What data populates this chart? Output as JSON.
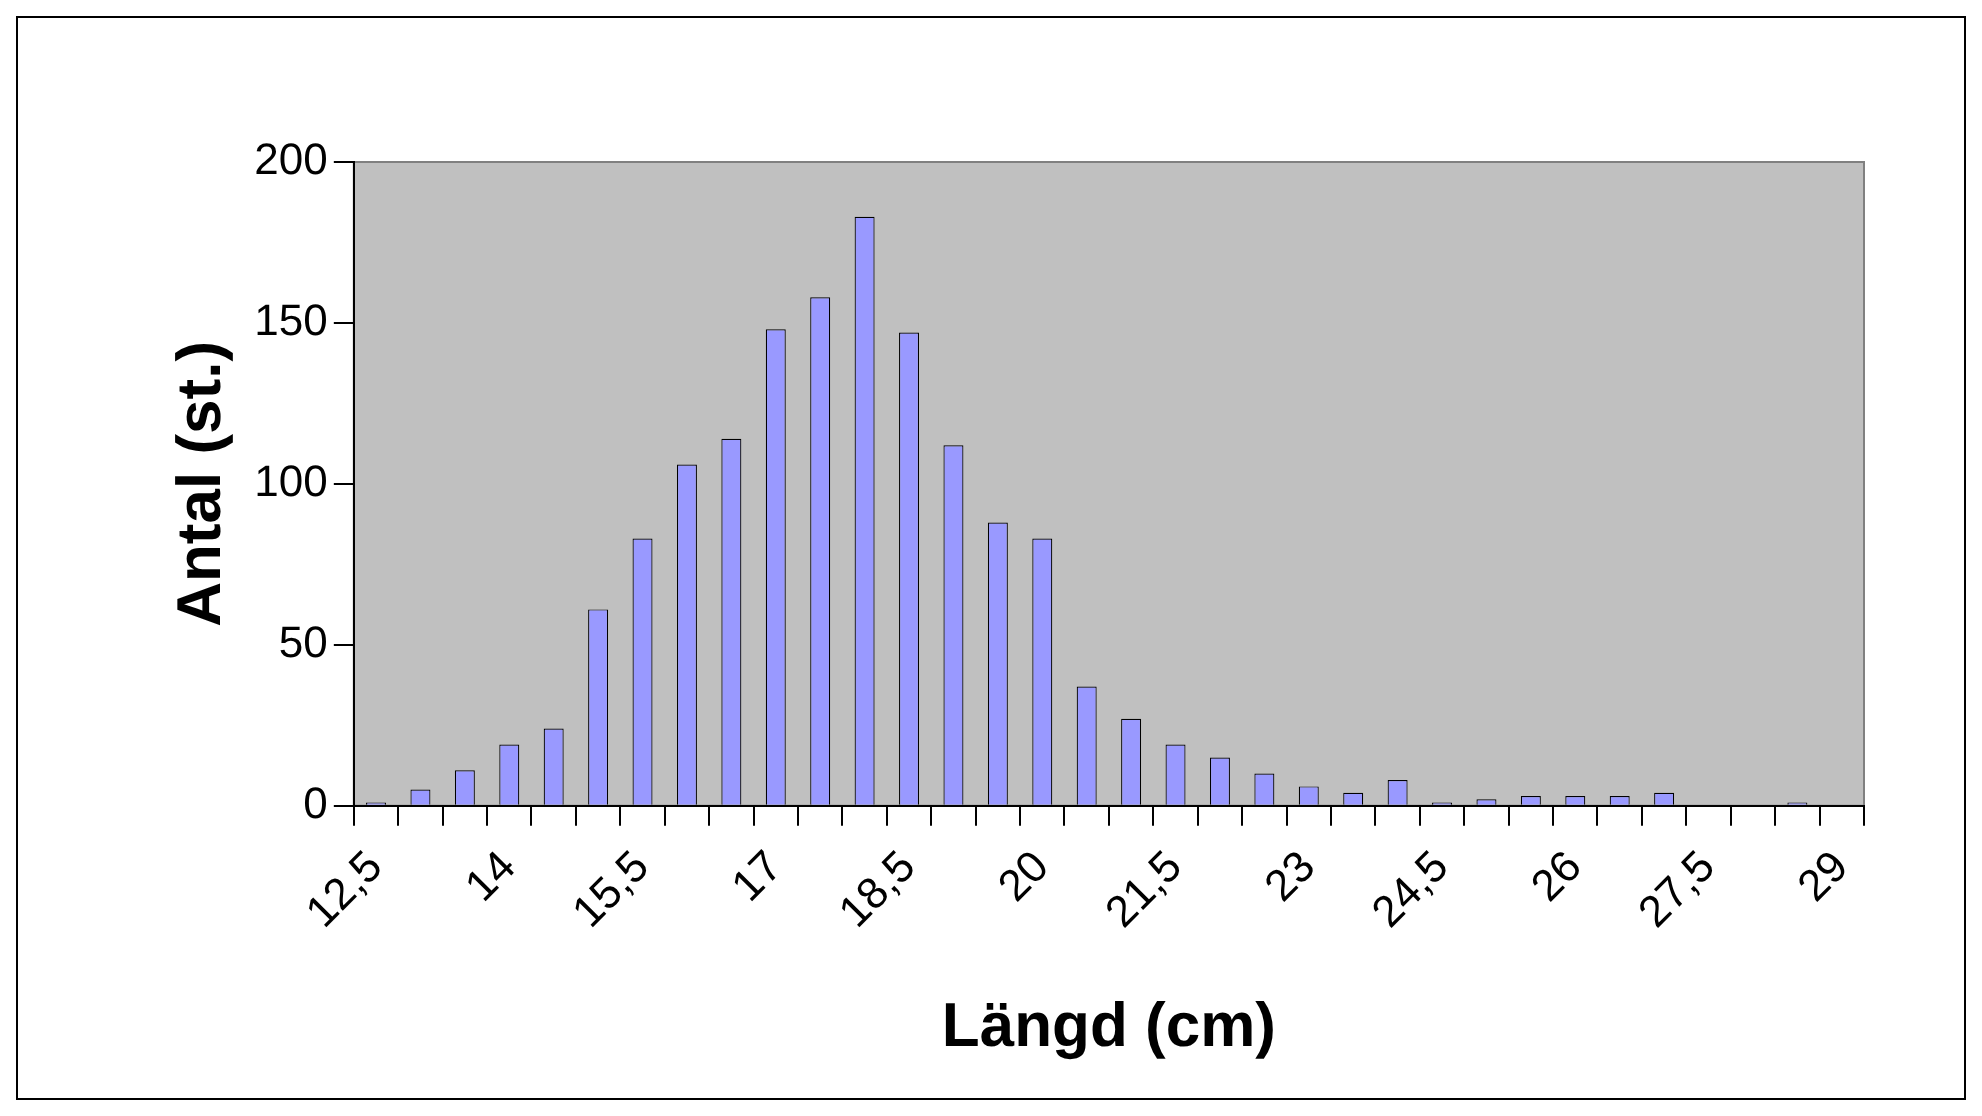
{
  "chart_data": {
    "type": "bar",
    "xlabel": "Längd (cm)",
    "ylabel": "Antal (st.)",
    "categories": [
      "12,5",
      null,
      null,
      "14",
      null,
      null,
      "15,5",
      null,
      null,
      "17",
      null,
      null,
      "18,5",
      null,
      null,
      "20",
      null,
      null,
      "21,5",
      null,
      null,
      "23",
      null,
      null,
      "24,5",
      null,
      null,
      "26",
      null,
      null,
      "27,5",
      null,
      null,
      "29"
    ],
    "values": [
      1,
      5,
      11,
      19,
      24,
      61,
      83,
      106,
      114,
      148,
      158,
      183,
      147,
      112,
      88,
      83,
      37,
      27,
      19,
      15,
      10,
      6,
      4,
      8,
      1,
      2,
      3,
      3,
      3,
      4,
      0,
      0,
      1,
      0
    ],
    "color": "#9999ff",
    "ylim": [
      0,
      200
    ],
    "yticks": [
      0,
      50,
      100,
      150,
      200
    ],
    "grid": false,
    "legend": false
  }
}
